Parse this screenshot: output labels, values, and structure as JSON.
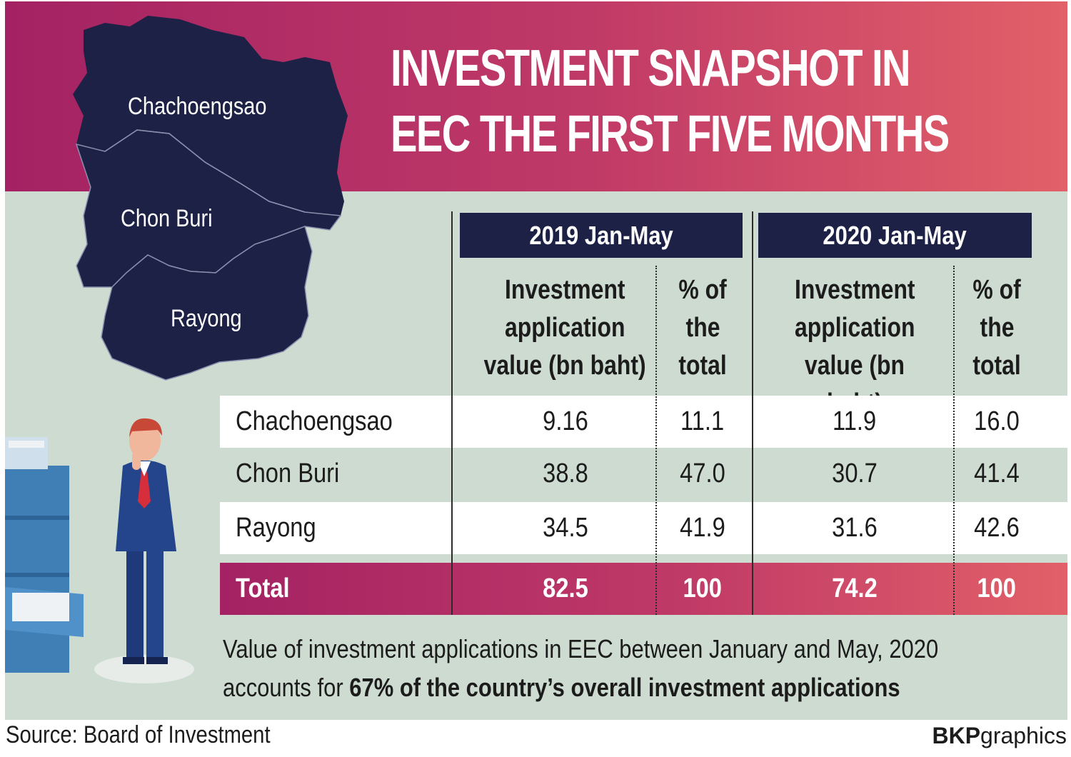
{
  "header": {
    "title_line1": "INVESTMENT SNAPSHOT IN",
    "title_line2": "EEC THE FIRST FIVE MONTHS"
  },
  "map": {
    "provinces": [
      "Chachoengsao",
      "Chon Buri",
      "Rayong"
    ]
  },
  "chart_data": {
    "type": "table",
    "title": "INVESTMENT SNAPSHOT IN EEC THE FIRST FIVE MONTHS",
    "period_headers": [
      "2019 Jan-May",
      "2020 Jan-May"
    ],
    "column_headers": [
      {
        "line1": "Investment",
        "line2": "application",
        "line3": "value (bn baht)"
      },
      {
        "line1": "% of",
        "line2": "the",
        "line3": "total"
      },
      {
        "line1": "Investment",
        "line2": "application",
        "line3": "value (bn baht)"
      },
      {
        "line1": "% of",
        "line2": "the",
        "line3": "total"
      }
    ],
    "rows": [
      {
        "label": "Chachoengsao",
        "v2019": "9.16",
        "p2019": "11.1",
        "v2020": "11.9",
        "p2020": "16.0"
      },
      {
        "label": "Chon Buri",
        "v2019": "38.8",
        "p2019": "47.0",
        "v2020": "30.7",
        "p2020": "41.4"
      },
      {
        "label": "Rayong",
        "v2019": "34.5",
        "p2019": "41.9",
        "v2020": "31.6",
        "p2020": "42.6"
      }
    ],
    "total": {
      "label": "Total",
      "v2019": "82.5",
      "p2019": "100",
      "v2020": "74.2",
      "p2020": "100"
    }
  },
  "note": {
    "line1": "Value of investment applications in EEC between January and May, 2020",
    "line2_prefix": "accounts for ",
    "line2_bold": "67% of the country’s overall investment applications"
  },
  "footer": {
    "source": "Source: Board of Investment",
    "credit_bold": "BKP",
    "credit_rest": "graphics"
  },
  "colors": {
    "navy": "#1c2145",
    "magenta": "#a42263",
    "coral": "#e26068",
    "background": "#cddbd1"
  }
}
